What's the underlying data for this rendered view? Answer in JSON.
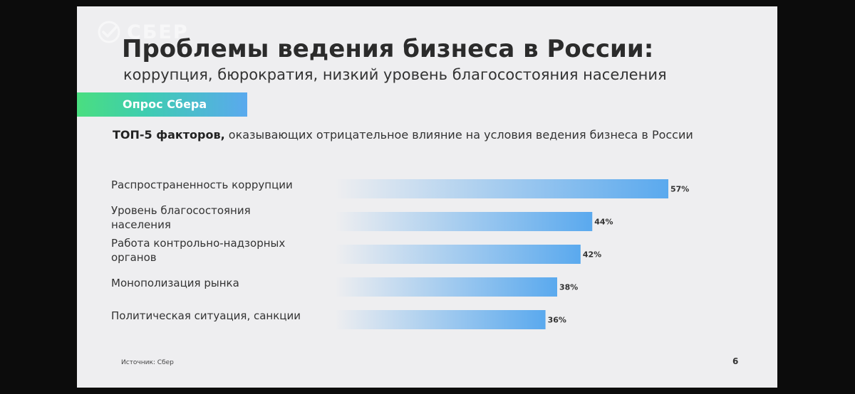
{
  "logo": {
    "text": "СБЕР"
  },
  "slide": {
    "title": "Проблемы ведения бизнеса в России:",
    "subtitle": "коррупция, бюрократия, низкий уровень благосостояния населения",
    "badge": "Опрос Сбера",
    "heading_bold": "ТОП-5 факторов,",
    "heading_rest": " оказывающих отрицательное влияние на условия ведения бизнеса в России",
    "source": "Источник: Сбер",
    "page_number": "6"
  },
  "chart_data": {
    "type": "bar",
    "orientation": "horizontal",
    "categories": [
      "Распространенность коррупции",
      "Уровень благосостояния населения",
      "Работа контрольно-надзорных органов",
      "Монополизация рынка",
      "Политическая ситуация, санкции"
    ],
    "label_lines": [
      [
        "Распространенность коррупции"
      ],
      [
        "Уровень благосостояния",
        "населения"
      ],
      [
        "Работа контрольно-надзорных",
        "органов"
      ],
      [
        "Монополизация рынка"
      ],
      [
        "Политическая ситуация, санкции"
      ]
    ],
    "values": [
      57,
      44,
      42,
      38,
      36
    ],
    "value_labels": [
      "57%",
      "44%",
      "42%",
      "38%",
      "36%"
    ],
    "unit": "%",
    "bar_color": "#5aa9ee"
  }
}
